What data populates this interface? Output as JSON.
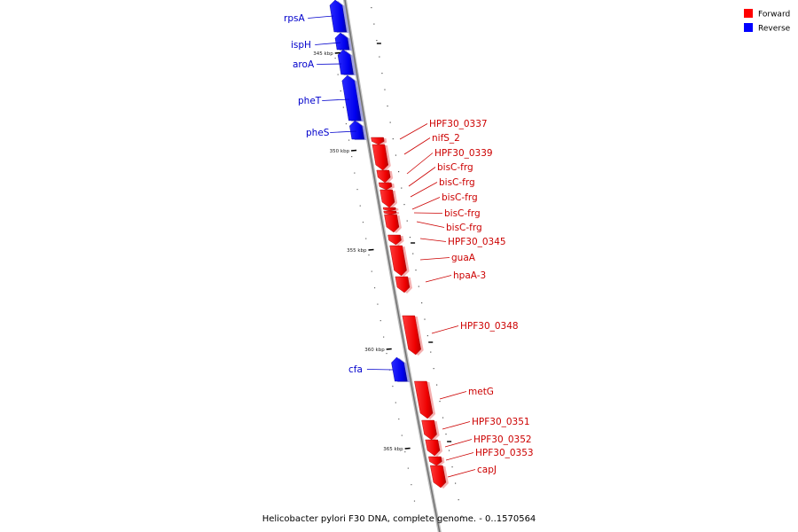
{
  "legend": {
    "items": [
      {
        "label": "Forward",
        "color": "#ff0000"
      },
      {
        "label": "Reverse",
        "color": "#0000ff"
      }
    ]
  },
  "caption": "Helicobacter pylori F30 DNA, complete genome. - 0..1570564",
  "scale_labels": [
    "345 kbp",
    "350 kbp",
    "355 kbp",
    "360 kbp",
    "365 kbp"
  ],
  "genes": [
    {
      "name": "rpsA",
      "strand": "reverse"
    },
    {
      "name": "ispH",
      "strand": "reverse"
    },
    {
      "name": "aroA",
      "strand": "reverse"
    },
    {
      "name": "pheT",
      "strand": "reverse"
    },
    {
      "name": "pheS",
      "strand": "reverse"
    },
    {
      "name": "HPF30_0337",
      "strand": "forward"
    },
    {
      "name": "nifS_2",
      "strand": "forward"
    },
    {
      "name": "HPF30_0339",
      "strand": "forward"
    },
    {
      "name": "bisC-frg",
      "strand": "forward"
    },
    {
      "name": "bisC-frg",
      "strand": "forward"
    },
    {
      "name": "bisC-frg",
      "strand": "forward"
    },
    {
      "name": "bisC-frg",
      "strand": "forward"
    },
    {
      "name": "bisC-frg",
      "strand": "forward"
    },
    {
      "name": "HPF30_0345",
      "strand": "forward"
    },
    {
      "name": "guaA",
      "strand": "forward"
    },
    {
      "name": "hpaA-3",
      "strand": "forward"
    },
    {
      "name": "HPF30_0348",
      "strand": "forward"
    },
    {
      "name": "cfa",
      "strand": "reverse"
    },
    {
      "name": "metG",
      "strand": "forward"
    },
    {
      "name": "HPF30_0351",
      "strand": "forward"
    },
    {
      "name": "HPF30_0352",
      "strand": "forward"
    },
    {
      "name": "HPF30_0353",
      "strand": "forward"
    },
    {
      "name": "capJ",
      "strand": "forward"
    }
  ]
}
